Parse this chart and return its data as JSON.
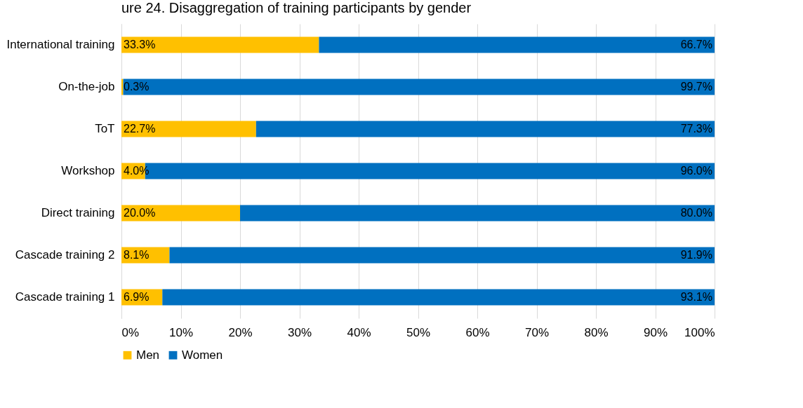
{
  "chart_data": {
    "type": "bar",
    "title": "ure 24. Disaggregation of training participants by gender",
    "orientation": "horizontal",
    "stacked": true,
    "categories": [
      "International training",
      "On-the-job",
      "ToT",
      "Workshop",
      "Direct training",
      "Cascade training 2",
      "Cascade training 1"
    ],
    "series": [
      {
        "name": "Men",
        "color": "#ffc000",
        "values": [
          33.3,
          0.3,
          22.7,
          4.0,
          20.0,
          8.1,
          6.9
        ],
        "value_labels": [
          "33.3%",
          "0.3%",
          "22.7%",
          "4.0%",
          "20.0%",
          "8.1%",
          "6.9%"
        ]
      },
      {
        "name": "Women",
        "color": "#0070c0",
        "values": [
          66.7,
          99.7,
          77.3,
          96.0,
          80.0,
          91.9,
          93.1
        ],
        "value_labels": [
          "66.7%",
          "99.7%",
          "77.3%",
          "96.0%",
          "80.0%",
          "91.9%",
          "93.1%"
        ]
      }
    ],
    "xlim": [
      0,
      100
    ],
    "xticks": [
      {
        "value": 0,
        "label": "0%"
      },
      {
        "value": 10,
        "label": "10%"
      },
      {
        "value": 20,
        "label": "20%"
      },
      {
        "value": 30,
        "label": "30%"
      },
      {
        "value": 40,
        "label": "40%"
      },
      {
        "value": 50,
        "label": "50%"
      },
      {
        "value": 60,
        "label": "60%"
      },
      {
        "value": 70,
        "label": "70%"
      },
      {
        "value": 80,
        "label": "80%"
      },
      {
        "value": 90,
        "label": "90%"
      },
      {
        "value": 100,
        "label": "100%"
      }
    ],
    "grid": "x",
    "legend": "bottom"
  }
}
